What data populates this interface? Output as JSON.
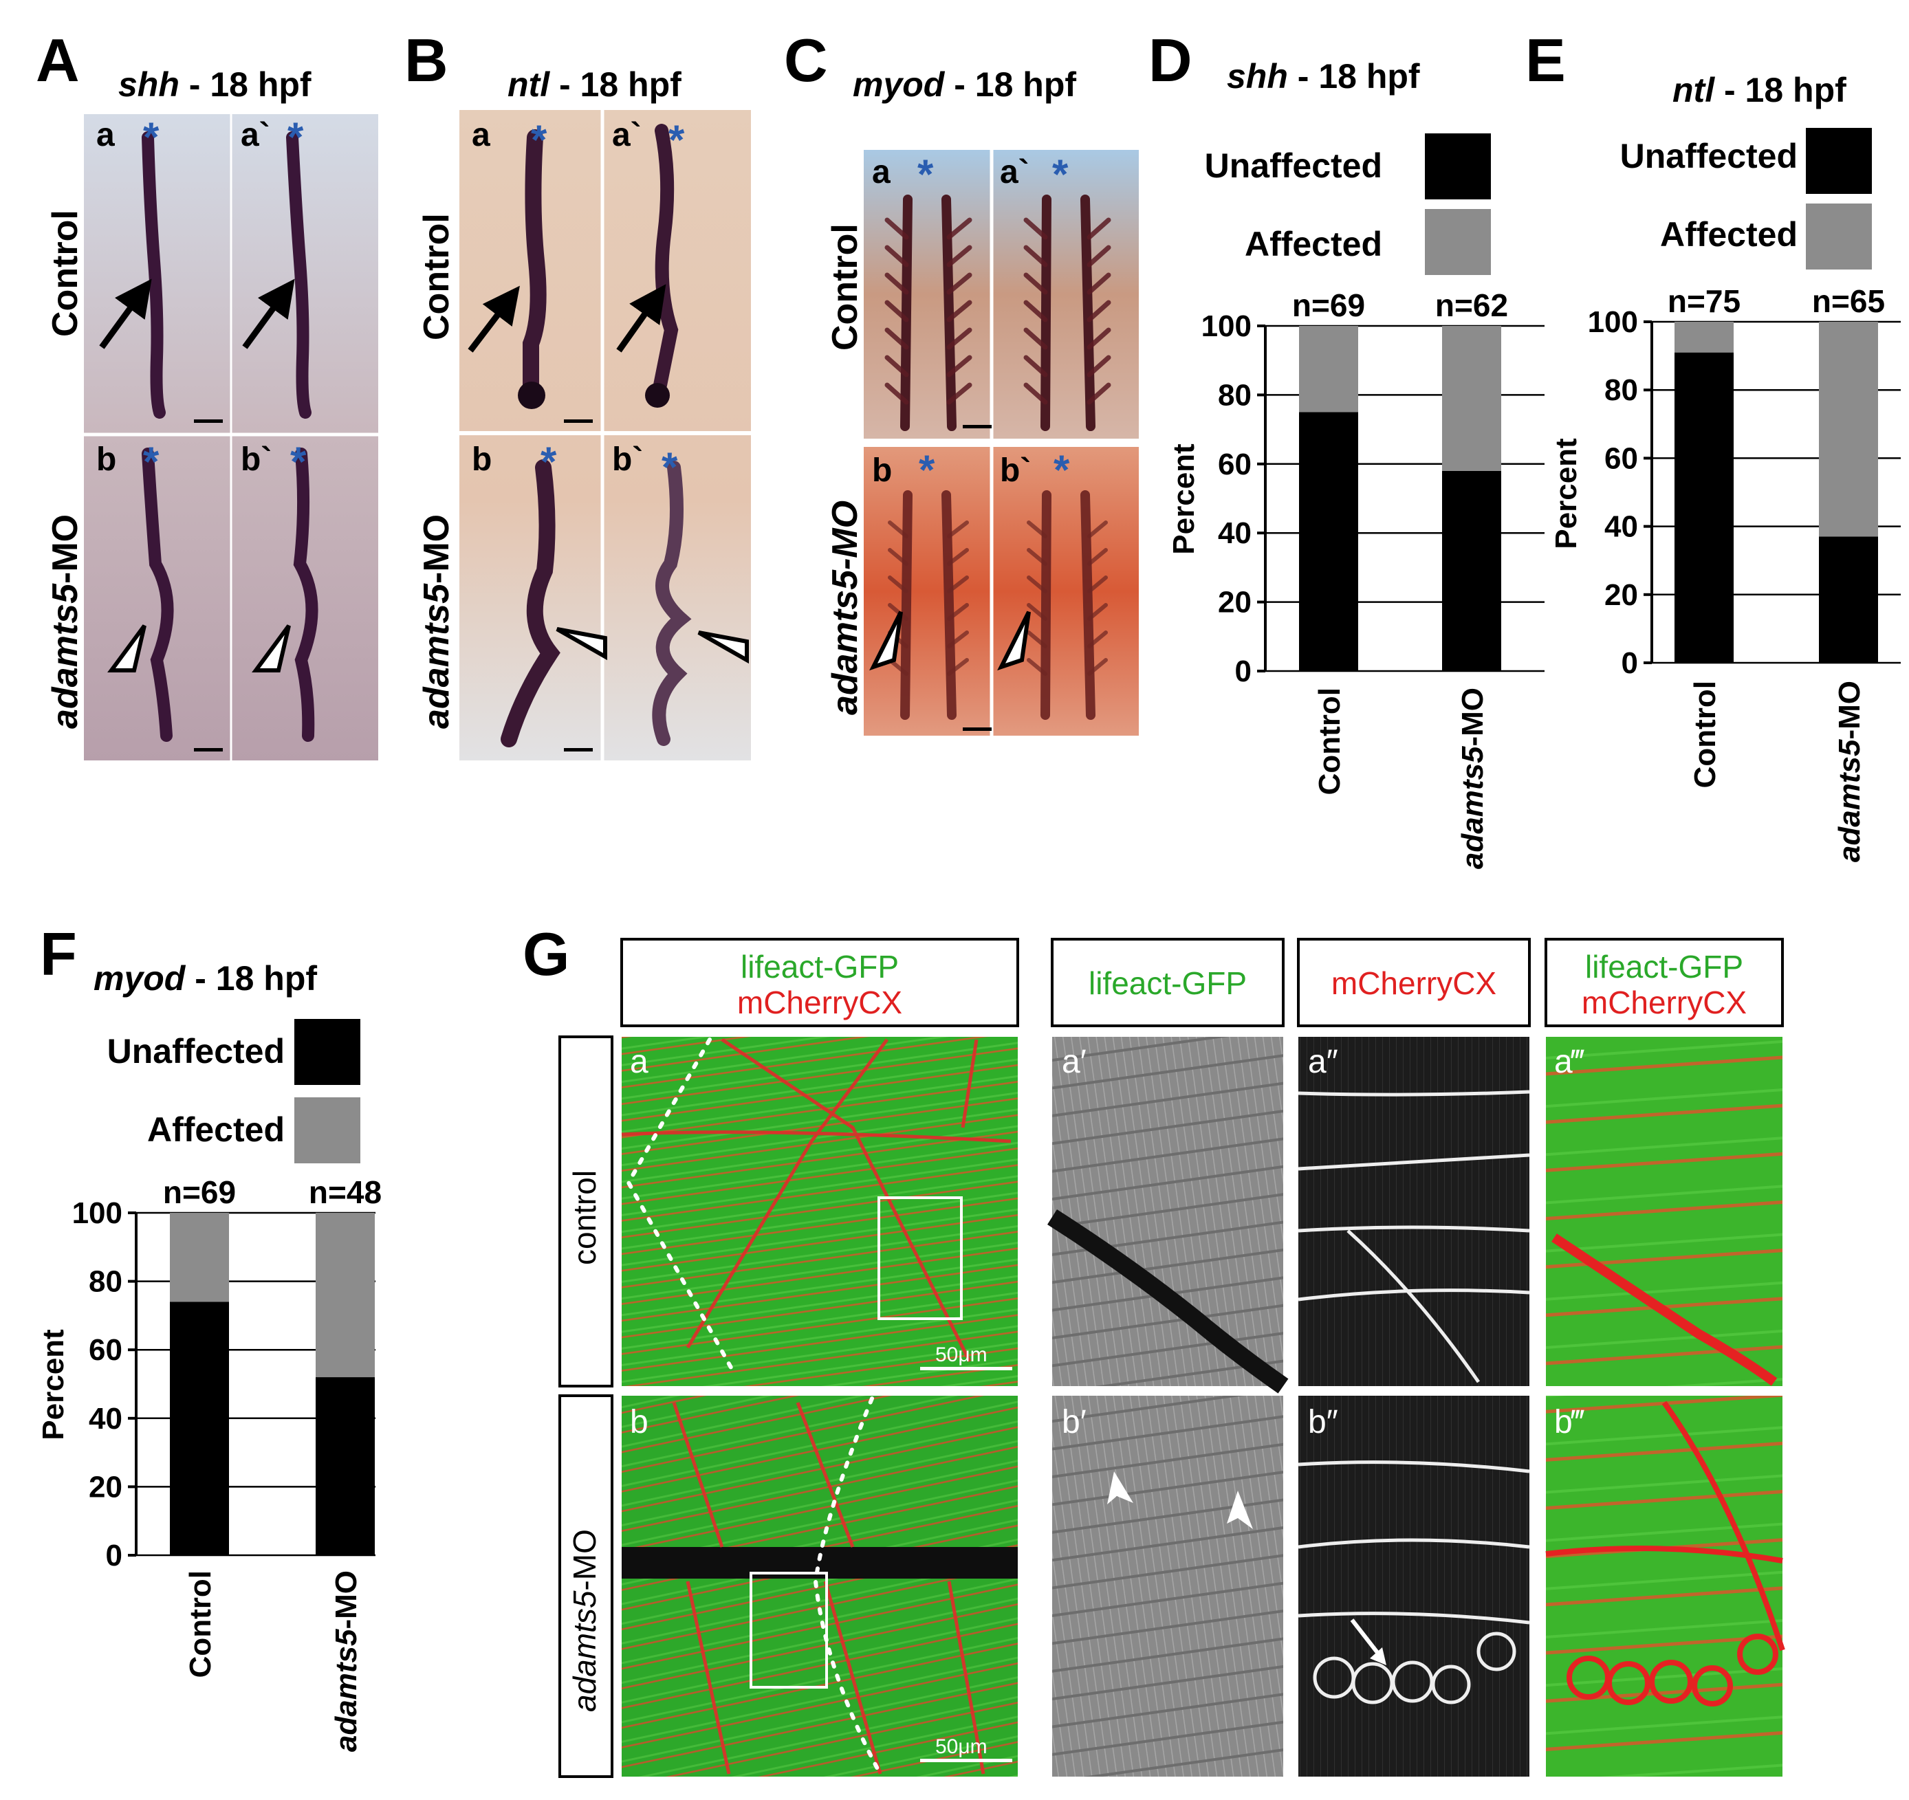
{
  "panels": {
    "A": {
      "letter": "A",
      "gene": "shh",
      "stage": " - 18 hpf",
      "sub": [
        "a",
        "a`",
        "b",
        "b`"
      ],
      "rows": [
        "Control",
        "adamts5",
        "-MO"
      ]
    },
    "B": {
      "letter": "B",
      "gene": "ntl",
      "stage": " - 18 hpf",
      "sub": [
        "a",
        "a`",
        "b",
        "b`"
      ],
      "rows": [
        "Control",
        "adamts5",
        "-MO"
      ]
    },
    "C": {
      "letter": "C",
      "gene": "myod",
      "stage": " - 18 hpf",
      "sub": [
        "a",
        "a`",
        "b",
        "b`"
      ],
      "rows": [
        "Control",
        "adamts5-MO"
      ]
    },
    "D": {
      "letter": "D"
    },
    "E": {
      "letter": "E"
    },
    "F": {
      "letter": "F"
    },
    "G": {
      "letter": "G",
      "headers": {
        "combo_green": "lifeact-GFP",
        "combo_red": "mCherryCX",
        "green": "lifeact-GFP",
        "red": "mCherryCX"
      },
      "rows": [
        "control",
        "adamts5",
        "-MO"
      ],
      "sub": [
        "a",
        "a′",
        "a″",
        "a‴",
        "b",
        "b′",
        "b″",
        "b‴"
      ],
      "scale_label": "50μm"
    }
  },
  "star_symbol": "*",
  "colors": {
    "black_bar": "#000000",
    "gray_bar": "#8c8c8c",
    "gfp_green": "#2fb12f",
    "mcherry_red": "#e32222",
    "asterisk_blue": "#2a5db0"
  },
  "chart_data": [
    {
      "type": "bar",
      "stacked": true,
      "panel": "D",
      "title_gene": "shh",
      "title_stage": " - 18 hpf",
      "ylabel": "Percent",
      "ylim": [
        0,
        100
      ],
      "yticks": [
        0,
        20,
        40,
        60,
        80,
        100
      ],
      "categories": [
        "Control",
        "adamts5-MO"
      ],
      "category_parts": [
        [
          "Control",
          ""
        ],
        [
          "adamts5",
          "-MO"
        ]
      ],
      "n_labels": [
        "n=69",
        "n=62"
      ],
      "series": [
        {
          "name": "Unaffected",
          "values": [
            75,
            58
          ]
        },
        {
          "name": "Affected",
          "values": [
            25,
            42
          ]
        }
      ],
      "legend": "top"
    },
    {
      "type": "bar",
      "stacked": true,
      "panel": "E",
      "title_gene": "ntl",
      "title_stage": " - 18 hpf",
      "ylabel": "Percent",
      "ylim": [
        0,
        100
      ],
      "yticks": [
        0,
        20,
        40,
        60,
        80,
        100
      ],
      "categories": [
        "Control",
        "adamts5-MO"
      ],
      "category_parts": [
        [
          "Control",
          ""
        ],
        [
          "adamts5",
          "-MO"
        ]
      ],
      "n_labels": [
        "n=75",
        "n=65"
      ],
      "series": [
        {
          "name": "Unaffected",
          "values": [
            91,
            37
          ]
        },
        {
          "name": "Affected",
          "values": [
            9,
            63
          ]
        }
      ],
      "legend": "top"
    },
    {
      "type": "bar",
      "stacked": true,
      "panel": "F",
      "title_gene": "myod",
      "title_stage": " - 18 hpf",
      "ylabel": "Percent",
      "ylim": [
        0,
        100
      ],
      "yticks": [
        0,
        20,
        40,
        60,
        80,
        100
      ],
      "categories": [
        "Control",
        "adamts5-MO"
      ],
      "category_parts": [
        [
          "Control",
          ""
        ],
        [
          "adamts5",
          "-MO"
        ]
      ],
      "n_labels": [
        "n=69",
        "n=48"
      ],
      "series": [
        {
          "name": "Unaffected",
          "values": [
            74,
            52
          ]
        },
        {
          "name": "Affected",
          "values": [
            26,
            48
          ]
        }
      ],
      "legend": "top"
    }
  ]
}
